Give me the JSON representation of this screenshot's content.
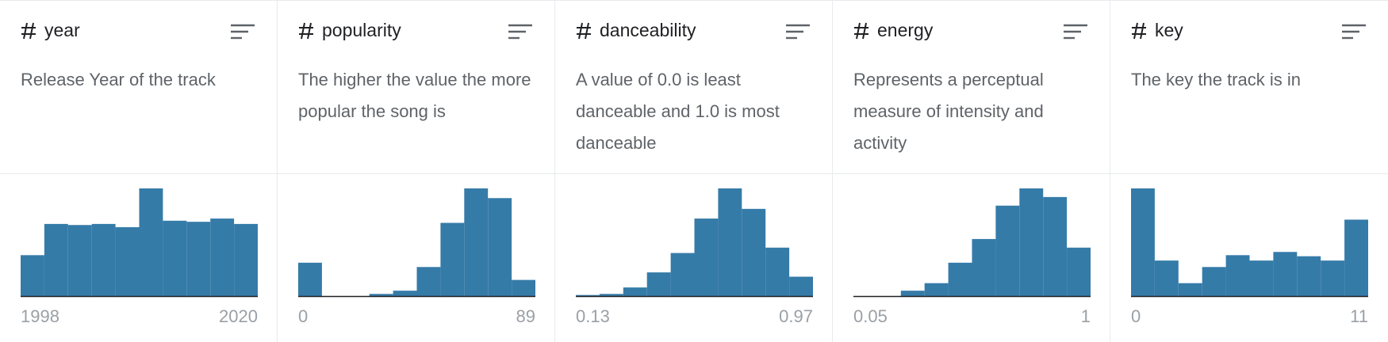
{
  "columns": [
    {
      "name": "year",
      "description": "Release Year of the track",
      "counts": [
        38,
        67,
        66,
        67,
        64,
        100,
        70,
        69,
        72,
        67
      ],
      "min": 1998,
      "max": 2020
    },
    {
      "name": "popularity",
      "description": "The higher the value the more popular the song is",
      "counts": [
        31,
        0,
        0,
        2,
        5,
        27,
        68,
        100,
        91,
        15
      ],
      "min": 0,
      "max": 89
    },
    {
      "name": "danceability",
      "description": "A value of 0.0 is least danceable and 1.0 is most danceable",
      "counts": [
        1,
        2,
        8,
        22,
        40,
        72,
        100,
        81,
        45,
        18
      ],
      "min": 0.13,
      "max": 0.97
    },
    {
      "name": "energy",
      "description": "Represents a perceptual measure of intensity and activity",
      "counts": [
        0,
        0,
        5,
        12,
        31,
        53,
        84,
        100,
        92,
        45
      ],
      "min": 0.05,
      "max": 1
    },
    {
      "name": "key",
      "description": "The key the track is in",
      "counts": [
        100,
        33,
        12,
        27,
        38,
        33,
        41,
        37,
        33,
        71
      ],
      "min": 0,
      "max": 11
    }
  ]
}
